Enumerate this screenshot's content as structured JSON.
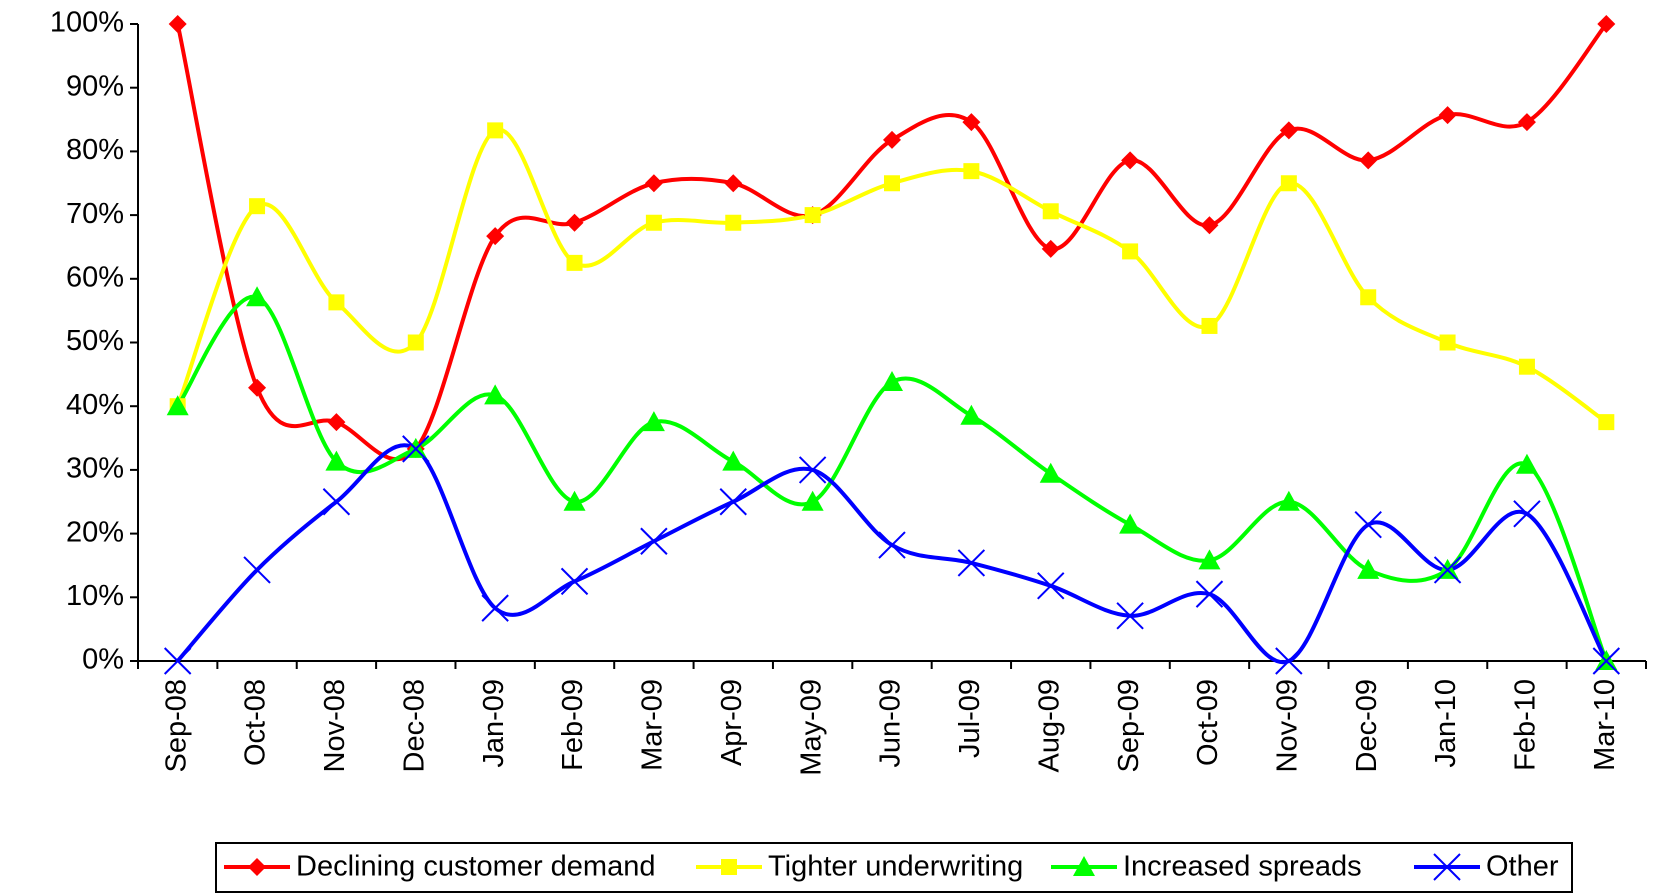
{
  "chart_data": {
    "type": "line",
    "categories": [
      "Sep-08",
      "Oct-08",
      "Nov-08",
      "Dec-08",
      "Jan-09",
      "Feb-09",
      "Mar-09",
      "Apr-09",
      "May-09",
      "Jun-09",
      "Jul-09",
      "Aug-09",
      "Sep-09",
      "Oct-09",
      "Nov-09",
      "Dec-09",
      "Jan-10",
      "Feb-10",
      "Mar-10"
    ],
    "series": [
      {
        "name": "Declining customer demand",
        "color": "#ff0000",
        "marker": "diamond",
        "values": [
          100,
          42.9,
          37.5,
          33.3,
          66.7,
          68.8,
          75,
          75,
          70,
          81.8,
          84.6,
          64.7,
          78.6,
          68.4,
          83.3,
          78.6,
          85.7,
          84.6,
          100
        ]
      },
      {
        "name": "Tighter underwriting",
        "color": "#ffff00",
        "marker": "square",
        "values": [
          40,
          71.4,
          56.3,
          50,
          83.3,
          62.5,
          68.8,
          68.8,
          70,
          75,
          76.9,
          70.6,
          64.3,
          52.6,
          75,
          57.1,
          50,
          46.2,
          37.5
        ]
      },
      {
        "name": "Increased spreads",
        "color": "#00ff00",
        "marker": "triangle",
        "values": [
          40,
          57.1,
          31.3,
          33.3,
          41.7,
          25,
          37.5,
          31.3,
          25,
          43.8,
          38.5,
          29.4,
          21.4,
          15.8,
          25,
          14.3,
          14.3,
          30.8,
          0
        ]
      },
      {
        "name": "Other",
        "color": "#0000ff",
        "marker": "x",
        "values": [
          0,
          14.3,
          25,
          33.3,
          8.3,
          12.5,
          18.8,
          25,
          30,
          18.2,
          15.4,
          11.8,
          7.1,
          10.5,
          0,
          21.4,
          14.3,
          23.1,
          0
        ]
      }
    ],
    "ylim": [
      0,
      100
    ],
    "yticks": [
      {
        "value": 0,
        "label": "0%"
      },
      {
        "value": 10,
        "label": "10%"
      },
      {
        "value": 20,
        "label": "20%"
      },
      {
        "value": 30,
        "label": "30%"
      },
      {
        "value": 40,
        "label": "40%"
      },
      {
        "value": 50,
        "label": "50%"
      },
      {
        "value": 60,
        "label": "60%"
      },
      {
        "value": 70,
        "label": "70%"
      },
      {
        "value": 80,
        "label": "80%"
      },
      {
        "value": 90,
        "label": "90%"
      },
      {
        "value": 100,
        "label": "100%"
      }
    ],
    "grid": false,
    "legend": "bottom"
  }
}
